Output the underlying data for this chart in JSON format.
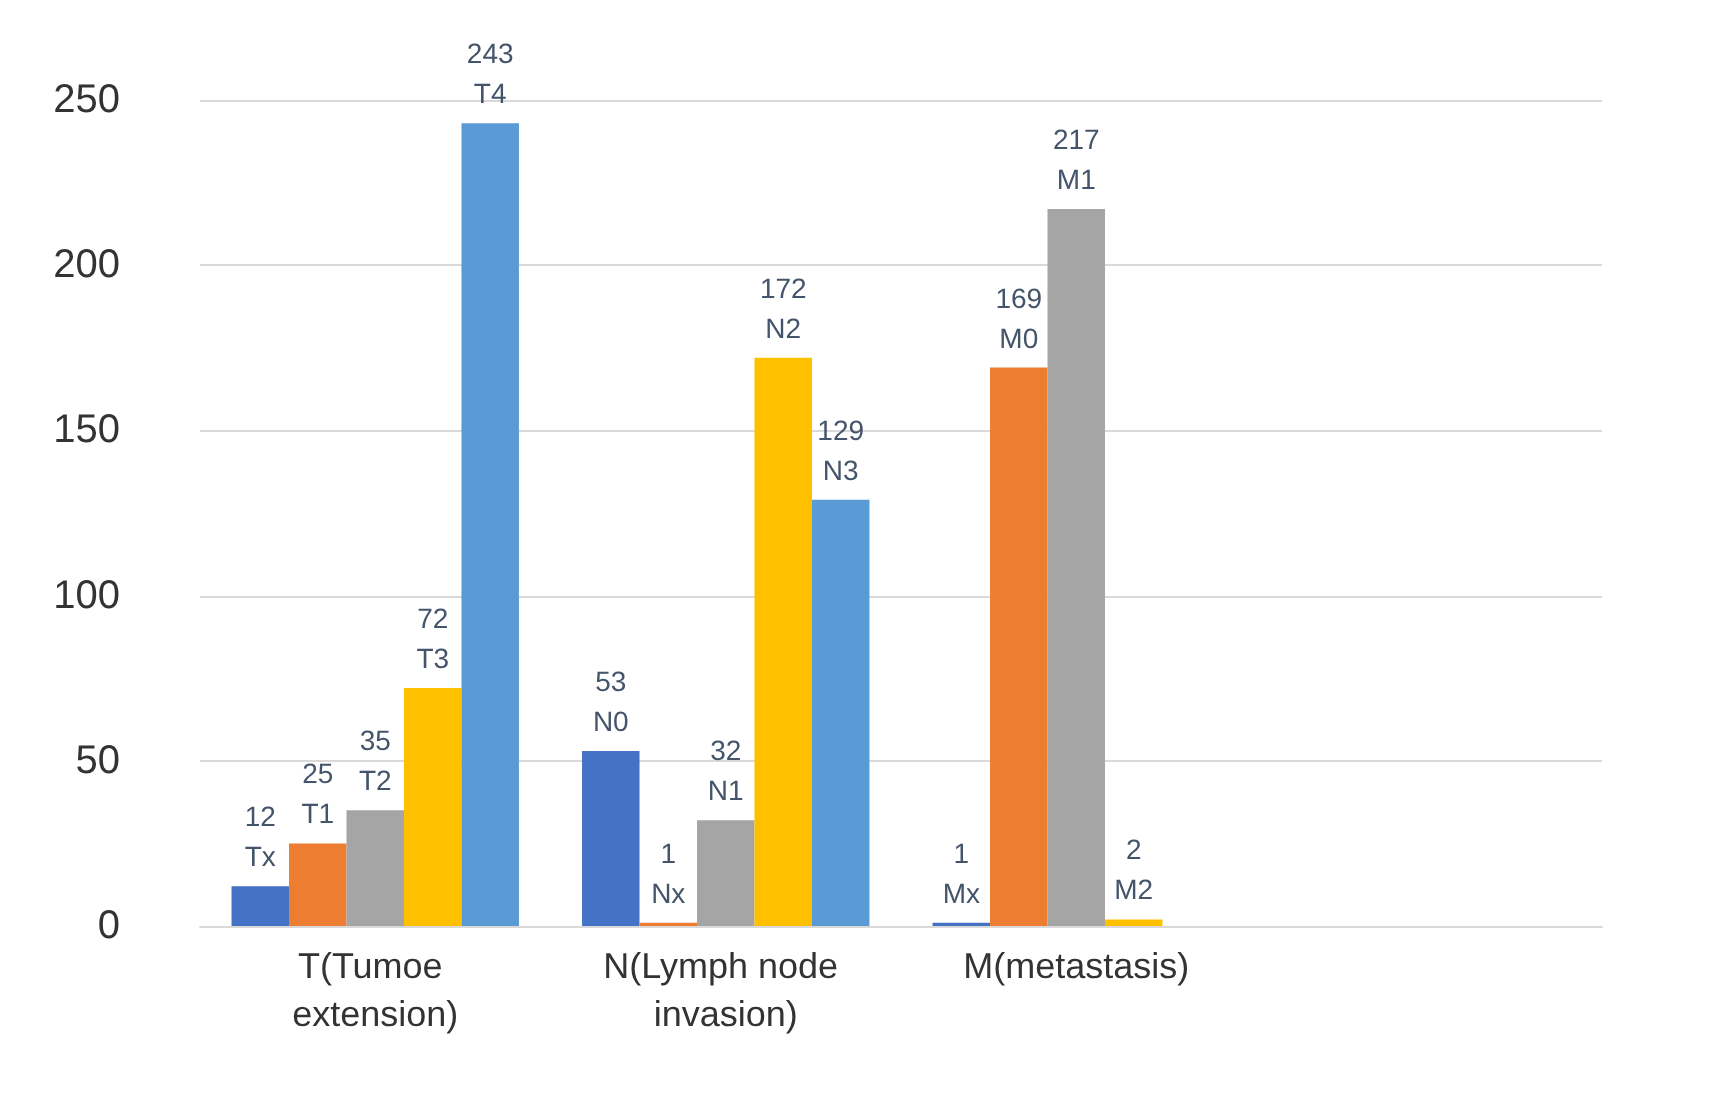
{
  "chart_data": {
    "type": "bar",
    "categories": [
      "T(Tumoe extension)",
      "N(Lymph node invasion)",
      "M(metastasis)",
      null
    ],
    "series": [
      {
        "color": "#4472c4",
        "values": [
          12,
          53,
          1,
          null
        ],
        "value_labels": [
          "12\nTx",
          "53\nN0",
          "1\nMx",
          null
        ]
      },
      {
        "color": "#ed7d31",
        "values": [
          25,
          1,
          169,
          null
        ],
        "value_labels": [
          "25\nT1",
          "1\nNx",
          "169\nM0",
          null
        ]
      },
      {
        "color": "#a5a5a5",
        "values": [
          35,
          32,
          217,
          null
        ],
        "value_labels": [
          "35\nT2",
          "32\nN1",
          "217\nM1",
          null
        ]
      },
      {
        "color": "#ffc000",
        "values": [
          72,
          172,
          2,
          null
        ],
        "value_labels": [
          "72\nT3",
          "172\nN2",
          "2\nM2",
          null
        ]
      },
      {
        "color": "#5b9bd5",
        "values": [
          243,
          129,
          null,
          null
        ],
        "value_labels": [
          "243\nT4",
          "129\nN3",
          null,
          null
        ]
      }
    ],
    "ylim": [
      0,
      250
    ],
    "yticks": [
      0,
      50,
      100,
      150,
      200,
      250
    ],
    "grid": "y"
  }
}
